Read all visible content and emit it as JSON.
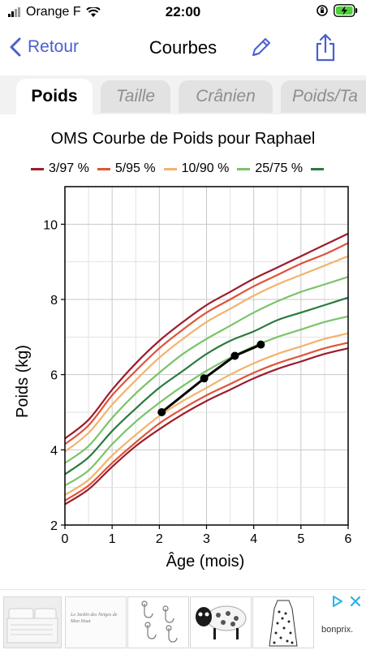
{
  "status": {
    "carrier": "Orange F",
    "time": "22:00"
  },
  "nav": {
    "back_label": "Retour",
    "title": "Courbes"
  },
  "tabs": [
    {
      "label": "Poids"
    },
    {
      "label": "Taille"
    },
    {
      "label": "Crânien"
    },
    {
      "label": "Poids/Ta"
    }
  ],
  "colors": {
    "accent": "#4a5fd0",
    "p3_97": "#9c1d2c",
    "p5_95": "#e0533a",
    "p10_90": "#f2b36c",
    "p25_75": "#7bc46a",
    "p50": "#2a7a40",
    "child": "#000000"
  },
  "chart_data": {
    "type": "line",
    "title": "OMS Courbe de Poids pour Raphael",
    "xlabel": "Âge (mois)",
    "ylabel": "Poids (kg)",
    "xlim": [
      0,
      6
    ],
    "ylim": [
      2,
      11
    ],
    "xticks": [
      0,
      1,
      2,
      3,
      4,
      5,
      6
    ],
    "yticks": [
      2,
      4,
      6,
      8,
      10
    ],
    "grid": true,
    "legend": {
      "position": "top",
      "entries": [
        "3/97 %",
        "5/95 %",
        "10/90 %",
        "25/75 %",
        ""
      ]
    },
    "x": [
      0,
      0.5,
      1,
      1.5,
      2,
      2.5,
      3,
      3.5,
      4,
      4.5,
      5,
      5.5,
      6
    ],
    "series": [
      {
        "name": "3/97 %",
        "color": "#9c1d2c",
        "values": [
          4.3,
          4.8,
          5.6,
          6.3,
          6.9,
          7.4,
          7.85,
          8.2,
          8.55,
          8.85,
          9.15,
          9.45,
          9.75
        ]
      },
      {
        "name": "5/95 %",
        "color": "#e0533a",
        "values": [
          4.15,
          4.65,
          5.45,
          6.1,
          6.7,
          7.2,
          7.65,
          8.0,
          8.35,
          8.65,
          8.95,
          9.2,
          9.5
        ]
      },
      {
        "name": "10/90 %",
        "color": "#f2b36c",
        "values": [
          3.95,
          4.45,
          5.2,
          5.85,
          6.45,
          6.95,
          7.4,
          7.75,
          8.1,
          8.4,
          8.65,
          8.9,
          9.15
        ]
      },
      {
        "name": "25/75 %",
        "color": "#7bc46a",
        "values": [
          3.65,
          4.1,
          4.85,
          5.5,
          6.05,
          6.55,
          6.95,
          7.3,
          7.65,
          7.95,
          8.2,
          8.4,
          8.6
        ]
      },
      {
        "name": "",
        "color": "#2a7a40",
        "values": [
          3.35,
          3.8,
          4.5,
          5.1,
          5.65,
          6.1,
          6.55,
          6.9,
          7.15,
          7.45,
          7.65,
          7.85,
          8.05
        ]
      },
      {
        "name": "25/75 %",
        "color": "#7bc46a",
        "values": [
          3.05,
          3.45,
          4.15,
          4.75,
          5.25,
          5.7,
          6.1,
          6.45,
          6.75,
          7.0,
          7.2,
          7.4,
          7.55
        ]
      },
      {
        "name": "10/90 %",
        "color": "#f2b36c",
        "values": [
          2.8,
          3.2,
          3.85,
          4.4,
          4.9,
          5.3,
          5.65,
          6.0,
          6.3,
          6.55,
          6.75,
          6.95,
          7.1
        ]
      },
      {
        "name": "5/95 %",
        "color": "#e0533a",
        "values": [
          2.65,
          3.05,
          3.65,
          4.2,
          4.7,
          5.1,
          5.45,
          5.75,
          6.05,
          6.3,
          6.5,
          6.7,
          6.85
        ]
      },
      {
        "name": "3/97 %",
        "color": "#9c1d2c",
        "values": [
          2.55,
          2.95,
          3.55,
          4.1,
          4.55,
          4.95,
          5.3,
          5.6,
          5.9,
          6.15,
          6.35,
          6.55,
          6.7
        ]
      }
    ],
    "child": {
      "x": [
        2.05,
        2.95,
        3.6,
        4.15
      ],
      "y": [
        5.0,
        5.9,
        6.5,
        6.8
      ]
    }
  },
  "ads": [
    {
      "name": "ad-bedding"
    },
    {
      "name": "ad-wall-text",
      "text": "Le Jardin des Neiges de Mon Haut"
    },
    {
      "name": "ad-hooks"
    },
    {
      "name": "ad-sheep-cushion"
    },
    {
      "name": "ad-dress"
    }
  ],
  "brand": "bonprix."
}
